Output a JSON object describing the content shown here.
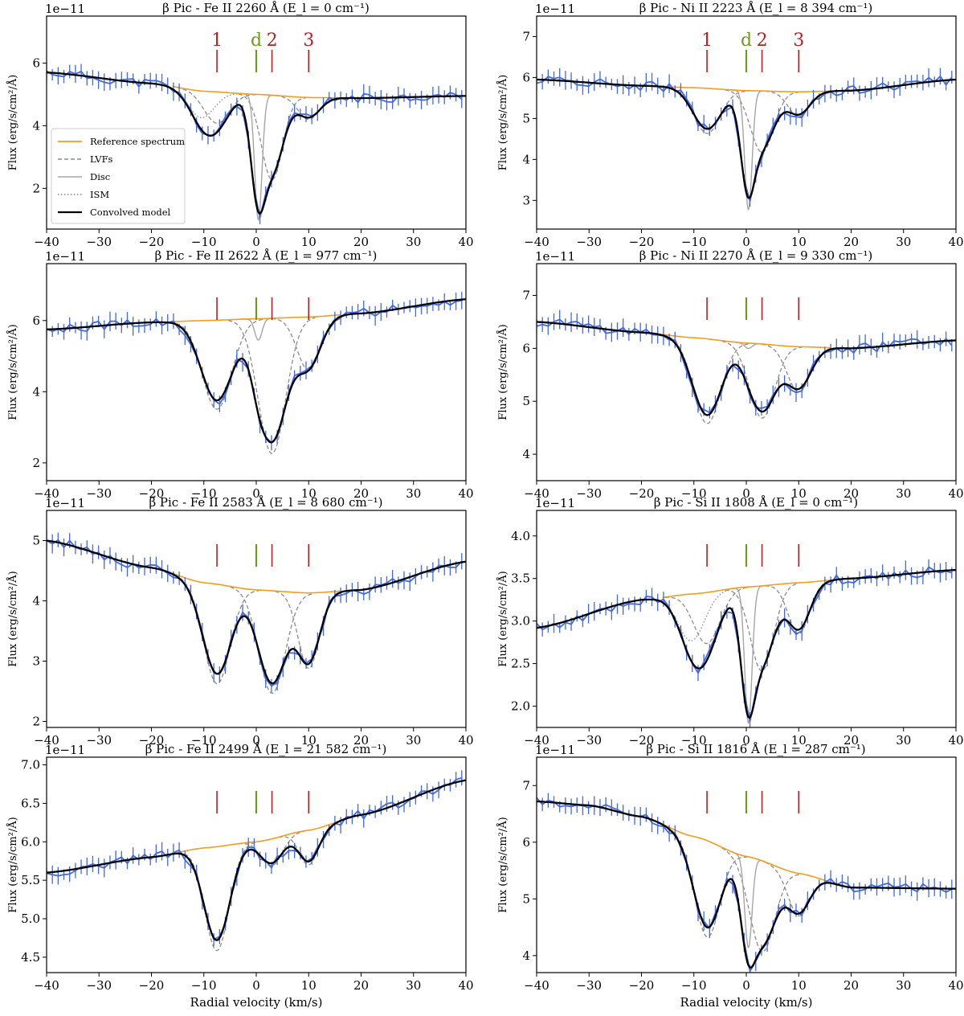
{
  "figure": {
    "xlabel": "Radial velocity (km/s)",
    "ylabel": "Flux (erg/s/cm²/Å)",
    "offset_label": "1e−11",
    "legend": [
      "Reference spectrum",
      "LVFs",
      "Disc",
      "ISM",
      "Convolved model"
    ],
    "marker_labels": [
      "1",
      "d",
      "2",
      "3"
    ],
    "marker_velocities": [
      -7.5,
      0,
      3,
      10
    ],
    "colors": {
      "reference": "#f39c1f",
      "data": "#4169e1",
      "model": "#000000",
      "lvf": "#8c8c8c",
      "disc": "#a5a5a5",
      "ism": "#8c8c8c",
      "marker_red": "#b22222",
      "marker_green": "#6b9a1e"
    }
  },
  "chart_data": [
    {
      "type": "line",
      "title": "β Pic  -  Fe II 2260 Å  (E_l = 0 cm⁻¹)",
      "ion": "Fe II 2260 Å",
      "energy": "0",
      "xlim": [
        -40,
        40
      ],
      "ylim": [
        0.7,
        7.5
      ],
      "yticks": [
        2,
        4,
        6
      ],
      "xticks": [
        -40,
        -30,
        -20,
        -10,
        0,
        10,
        20,
        30,
        40
      ],
      "show_labels": true,
      "show_legend": true,
      "show_xlabel": false,
      "ref_points": [
        [
          -40,
          5.7
        ],
        [
          -20,
          5.35
        ],
        [
          -10,
          5.1
        ],
        [
          0,
          5.0
        ],
        [
          10,
          4.9
        ],
        [
          20,
          4.88
        ],
        [
          40,
          4.95
        ]
      ],
      "ism_depth": 0.85,
      "components": [
        {
          "v": -7.5,
          "depth": 1.0,
          "width": 2.4
        },
        {
          "v": 3,
          "depth": 2.7,
          "width": 2.0
        },
        {
          "v": 10,
          "depth": 0.7,
          "width": 2.0
        }
      ],
      "disc_depth": 4.0,
      "disc_width": 0.7
    },
    {
      "type": "line",
      "title": "β Pic  -  Ni II 2223 Å  (E_l = 8 394 cm⁻¹)",
      "ion": "Ni II 2223 Å",
      "energy": "8 394",
      "xlim": [
        -40,
        40
      ],
      "ylim": [
        2.3,
        7.5
      ],
      "yticks": [
        3,
        4,
        5,
        6,
        7
      ],
      "xticks": [
        -40,
        -30,
        -20,
        -10,
        0,
        10,
        20,
        30,
        40
      ],
      "show_labels": true,
      "show_legend": false,
      "show_xlabel": false,
      "ref_points": [
        [
          -40,
          5.95
        ],
        [
          -20,
          5.8
        ],
        [
          -10,
          5.75
        ],
        [
          0,
          5.68
        ],
        [
          10,
          5.65
        ],
        [
          20,
          5.68
        ],
        [
          40,
          5.95
        ]
      ],
      "ism_depth": 0,
      "components": [
        {
          "v": -7.5,
          "depth": 1.1,
          "width": 2.5
        },
        {
          "v": 3,
          "depth": 1.5,
          "width": 2.2
        },
        {
          "v": 10,
          "depth": 0.6,
          "width": 2.0
        }
      ],
      "disc_depth": 2.9,
      "disc_width": 0.7
    },
    {
      "type": "line",
      "title": "β Pic  -  Fe II 2622 Å  (E_l = 977 cm⁻¹)",
      "ion": "Fe II 2622 Å",
      "energy": "977",
      "xlim": [
        -40,
        40
      ],
      "ylim": [
        1.5,
        7.6
      ],
      "yticks": [
        2,
        4,
        6
      ],
      "xticks": [
        -40,
        -30,
        -20,
        -10,
        0,
        10,
        20,
        30,
        40
      ],
      "show_labels": false,
      "show_legend": false,
      "show_xlabel": false,
      "ref_points": [
        [
          -40,
          5.75
        ],
        [
          -20,
          5.95
        ],
        [
          -10,
          6.0
        ],
        [
          0,
          6.05
        ],
        [
          10,
          6.1
        ],
        [
          20,
          6.2
        ],
        [
          40,
          6.6
        ]
      ],
      "ism_depth": 0,
      "components": [
        {
          "v": -7.5,
          "depth": 2.5,
          "width": 2.8
        },
        {
          "v": 3,
          "depth": 3.8,
          "width": 2.6
        },
        {
          "v": 10,
          "depth": 1.5,
          "width": 2.2
        }
      ],
      "disc_depth": 0.6,
      "disc_width": 0.7
    },
    {
      "type": "line",
      "title": "β Pic  -  Ni II 2270 Å  (E_l = 9 330 cm⁻¹)",
      "ion": "Ni II 2270 Å",
      "energy": "9 330",
      "xlim": [
        -40,
        40
      ],
      "ylim": [
        3.5,
        7.6
      ],
      "yticks": [
        4,
        5,
        6,
        7
      ],
      "xticks": [
        -40,
        -30,
        -20,
        -10,
        0,
        10,
        20,
        30,
        40
      ],
      "show_labels": false,
      "show_legend": false,
      "show_xlabel": false,
      "ref_points": [
        [
          -40,
          6.5
        ],
        [
          -20,
          6.3
        ],
        [
          -10,
          6.2
        ],
        [
          0,
          6.1
        ],
        [
          10,
          6.03
        ],
        [
          20,
          6.0
        ],
        [
          40,
          6.15
        ]
      ],
      "ism_depth": 0,
      "components": [
        {
          "v": -7.5,
          "depth": 1.6,
          "width": 2.6
        },
        {
          "v": 3,
          "depth": 1.4,
          "width": 2.4
        },
        {
          "v": 10,
          "depth": 0.85,
          "width": 2.2
        }
      ],
      "disc_depth": 0.1,
      "disc_width": 0.7
    },
    {
      "type": "line",
      "title": "β Pic  -  Fe II 2583 Å  (E_l = 8 680 cm⁻¹)",
      "ion": "Fe II 2583 Å",
      "energy": "8 680",
      "xlim": [
        -40,
        40
      ],
      "ylim": [
        1.9,
        5.5
      ],
      "yticks": [
        2,
        3,
        4,
        5
      ],
      "xticks": [
        -40,
        -30,
        -20,
        -10,
        0,
        10,
        20,
        30,
        40
      ],
      "show_labels": false,
      "show_legend": false,
      "show_xlabel": false,
      "ref_points": [
        [
          -40,
          5.0
        ],
        [
          -20,
          4.55
        ],
        [
          -10,
          4.3
        ],
        [
          0,
          4.18
        ],
        [
          10,
          4.13
        ],
        [
          20,
          4.18
        ],
        [
          40,
          4.65
        ]
      ],
      "ism_depth": 0,
      "components": [
        {
          "v": -7.5,
          "depth": 1.65,
          "width": 2.5
        },
        {
          "v": 3,
          "depth": 1.7,
          "width": 2.5
        },
        {
          "v": 10,
          "depth": 1.25,
          "width": 2.0
        }
      ],
      "disc_depth": 0,
      "disc_width": 0.7
    },
    {
      "type": "line",
      "title": "β Pic  -  Si II 1808 Å  (E_l = 0 cm⁻¹)",
      "ion": "Si II 1808 Å",
      "energy": "0",
      "xlim": [
        -40,
        40
      ],
      "ylim": [
        1.75,
        4.3
      ],
      "yticks": [
        2.0,
        2.5,
        3.0,
        3.5,
        4.0
      ],
      "xticks": [
        -40,
        -30,
        -20,
        -10,
        0,
        10,
        20,
        30,
        40
      ],
      "show_labels": false,
      "show_legend": false,
      "show_xlabel": false,
      "ref_points": [
        [
          -40,
          2.92
        ],
        [
          -20,
          3.25
        ],
        [
          -10,
          3.32
        ],
        [
          0,
          3.4
        ],
        [
          10,
          3.45
        ],
        [
          20,
          3.5
        ],
        [
          40,
          3.6
        ]
      ],
      "ism_depth": 0.55,
      "components": [
        {
          "v": -7.5,
          "depth": 0.6,
          "width": 2.5
        },
        {
          "v": 3,
          "depth": 1.0,
          "width": 2.2
        },
        {
          "v": 10,
          "depth": 0.6,
          "width": 2.0
        }
      ],
      "disc_depth": 1.6,
      "disc_width": 0.7
    },
    {
      "type": "line",
      "title": "β Pic  -  Fe II 2499 Å  (E_l = 21 582 cm⁻¹)",
      "ion": "Fe II 2499 Å",
      "energy": "21 582",
      "xlim": [
        -40,
        40
      ],
      "ylim": [
        4.3,
        7.1
      ],
      "yticks": [
        4.5,
        5.0,
        5.5,
        6.0,
        6.5,
        7.0
      ],
      "xticks": [
        -40,
        -30,
        -20,
        -10,
        0,
        10,
        20,
        30,
        40
      ],
      "show_labels": false,
      "show_legend": false,
      "show_xlabel": true,
      "ref_points": [
        [
          -40,
          5.6
        ],
        [
          -20,
          5.8
        ],
        [
          -10,
          5.92
        ],
        [
          0,
          6.0
        ],
        [
          10,
          6.15
        ],
        [
          20,
          6.35
        ],
        [
          40,
          6.8
        ]
      ],
      "ism_depth": 0,
      "components": [
        {
          "v": -7.5,
          "depth": 1.35,
          "width": 2.3
        },
        {
          "v": 3,
          "depth": 0.35,
          "width": 2.0
        },
        {
          "v": 10,
          "depth": 0.45,
          "width": 1.8
        }
      ],
      "disc_depth": 0,
      "disc_width": 0.7
    },
    {
      "type": "line",
      "title": "β Pic  -  Si II 1816 Å  (E_l = 287 cm⁻¹)",
      "ion": "Si II 1816 Å",
      "energy": "287",
      "xlim": [
        -40,
        40
      ],
      "ylim": [
        3.7,
        7.5
      ],
      "yticks": [
        4,
        5,
        6,
        7
      ],
      "xticks": [
        -40,
        -30,
        -20,
        -10,
        0,
        10,
        20,
        30,
        40
      ],
      "show_labels": false,
      "show_legend": false,
      "show_xlabel": true,
      "ref_points": [
        [
          -40,
          6.72
        ],
        [
          -30,
          6.65
        ],
        [
          -20,
          6.45
        ],
        [
          -10,
          6.1
        ],
        [
          0,
          5.75
        ],
        [
          10,
          5.45
        ],
        [
          20,
          5.2
        ],
        [
          40,
          5.18
        ]
      ],
      "ism_depth": 0,
      "components": [
        {
          "v": -7.5,
          "depth": 1.7,
          "width": 2.4
        },
        {
          "v": 3,
          "depth": 1.6,
          "width": 2.4
        },
        {
          "v": 10,
          "depth": 0.75,
          "width": 2.0
        }
      ],
      "disc_depth": 1.6,
      "disc_width": 0.7
    }
  ]
}
